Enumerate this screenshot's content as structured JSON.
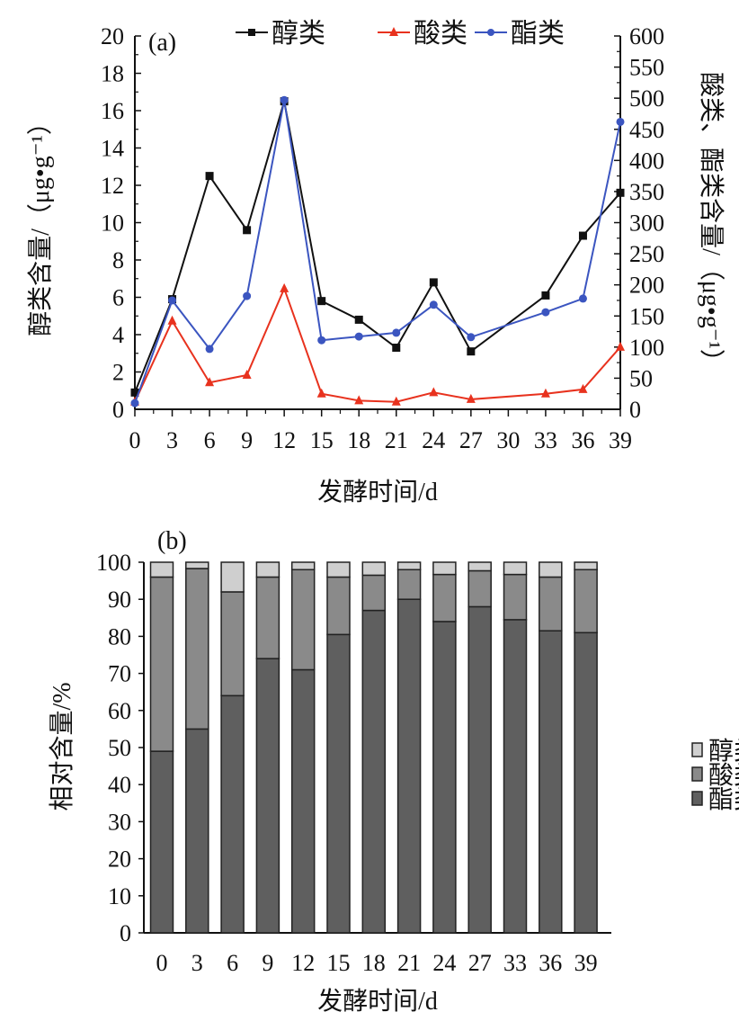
{
  "chart_data": [
    {
      "type": "line",
      "panel_label": "(a)",
      "categories": [
        "0",
        "3",
        "6",
        "9",
        "12",
        "15",
        "18",
        "21",
        "24",
        "27",
        "30",
        "33",
        "36",
        "39"
      ],
      "xlabel": "发酵时间/d",
      "ylabel": "醇类含量/（μg•g⁻¹）",
      "ylabel_right": "酸类、酯类含量/（μg•g⁻¹）",
      "ylim": [
        0,
        20
      ],
      "yticks": [
        0,
        2,
        4,
        6,
        8,
        10,
        12,
        14,
        16,
        18,
        20
      ],
      "ylim_right": [
        0,
        600
      ],
      "yticks_right": [
        0,
        50,
        100,
        150,
        200,
        250,
        300,
        350,
        400,
        450,
        500,
        550,
        600
      ],
      "legend_position": "top",
      "series": [
        {
          "name": "醇类",
          "axis": "left",
          "color": "#111111",
          "marker": "square",
          "values": [
            0.9,
            5.9,
            12.5,
            9.6,
            16.5,
            5.8,
            4.8,
            3.3,
            6.8,
            3.1,
            null,
            6.1,
            9.3,
            11.6
          ]
        },
        {
          "name": "酸类",
          "axis": "right",
          "color": "#e8321e",
          "marker": "triangle",
          "values": [
            12,
            142,
            43,
            55,
            194,
            25,
            14,
            12,
            27,
            16,
            null,
            25,
            32,
            100
          ]
        },
        {
          "name": "酯类",
          "axis": "right",
          "color": "#3b55c0",
          "marker": "circle",
          "values": [
            10,
            175,
            97,
            182,
            497,
            111,
            117,
            123,
            168,
            116,
            null,
            156,
            178,
            462
          ]
        }
      ]
    },
    {
      "type": "bar",
      "stacked": true,
      "panel_label": "(b)",
      "categories": [
        "0",
        "3",
        "6",
        "9",
        "12",
        "15",
        "18",
        "21",
        "24",
        "27",
        "33",
        "36",
        "39"
      ],
      "xlabel": "发酵时间/d",
      "ylabel": "相对含量/%",
      "ylim": [
        0,
        100
      ],
      "yticks": [
        0,
        10,
        20,
        30,
        40,
        50,
        60,
        70,
        80,
        90,
        100
      ],
      "legend_position": "right",
      "series": [
        {
          "name": "酯类",
          "color": "#5f5f5f",
          "values": [
            49,
            55,
            64,
            74,
            71,
            80.5,
            87,
            90,
            84,
            88,
            84.5,
            81.5,
            81
          ]
        },
        {
          "name": "酸类",
          "color": "#8a8a8a",
          "values": [
            47,
            43.3,
            28,
            22,
            27,
            15.5,
            9.5,
            8,
            12.7,
            9.7,
            12.2,
            14.5,
            17
          ]
        },
        {
          "name": "醇类",
          "color": "#cfcfcf",
          "values": [
            4,
            1.7,
            8,
            4,
            2,
            4,
            3.5,
            2,
            3.3,
            2.3,
            3.3,
            4,
            2
          ]
        }
      ],
      "legend_order": [
        "醇类",
        "酸类",
        "酯类"
      ]
    }
  ]
}
